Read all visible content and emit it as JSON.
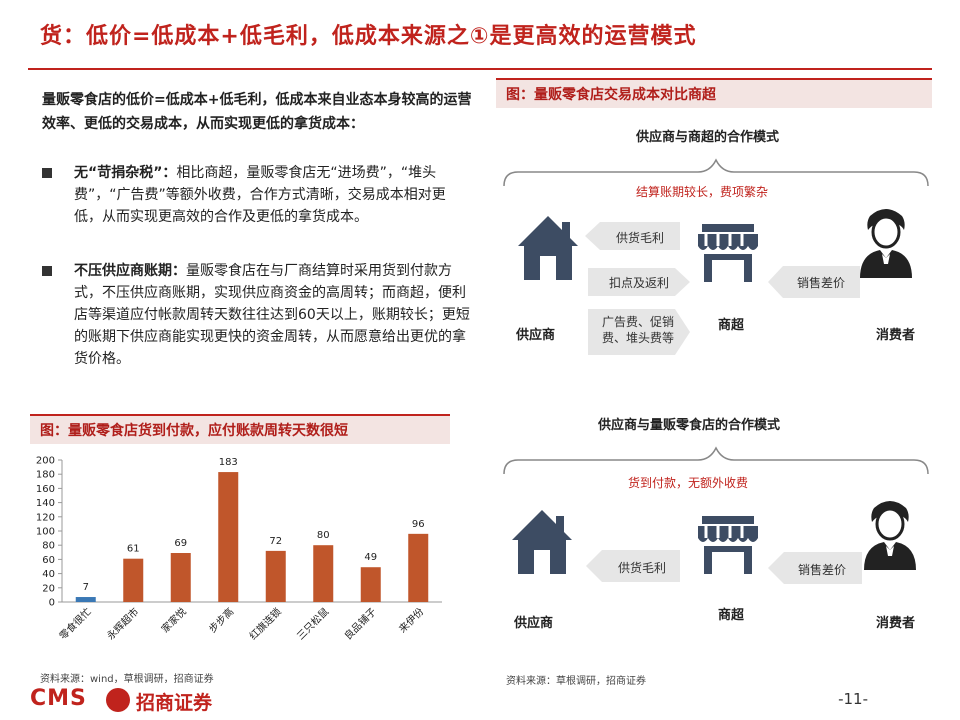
{
  "title": "货：低价=低成本+低毛利，低成本来源之①是更高效的运营模式",
  "intro": "量贩零食店的低价=低成本+低毛利，低成本来自业态本身较高的运营效率、更低的交易成本，从而实现更低的拿货成本：",
  "bullets": [
    {
      "head": "无“苛捐杂税”：",
      "body": "相比商超，量贩零食店无“进场费”，“堆头费”，“广告费”等额外收费，合作方式清晰，交易成本相对更低，从而实现更高效的合作及更低的拿货成本。"
    },
    {
      "head": "不压供应商账期：",
      "body": "量贩零食店在与厂商结算时采用货到付款方式，不压供应商账期，实现供应商资金的高周转；而商超，便利店等渠道应付帐款周转天数往往达到60天以上，账期较长；更短的账期下供应商能实现更快的资金周转，从而愿意给出更优的拿货价格。"
    }
  ],
  "chart_caption": "图：量贩零食店货到付款，应付账款周转天数很短",
  "chart_data": {
    "type": "bar",
    "categories": [
      "零食很忙",
      "永辉超市",
      "家家悦",
      "步步高",
      "红旗连锁",
      "三只松鼠",
      "良品铺子",
      "来伊份"
    ],
    "values": [
      7,
      61,
      69,
      183,
      72,
      80,
      49,
      96
    ],
    "colors": [
      "#3a78b5",
      "#c0562b",
      "#c0562b",
      "#c0562b",
      "#c0562b",
      "#c0562b",
      "#c0562b",
      "#c0562b"
    ],
    "ylim": [
      0,
      200
    ],
    "yticks": [
      0,
      20,
      40,
      60,
      80,
      100,
      120,
      140,
      160,
      180,
      200
    ],
    "title": "",
    "xlabel": "",
    "ylabel": "",
    "grid": false
  },
  "source_left": "资料来源：wind，草根调研，招商证券",
  "right_caption": "图：量贩零食店交易成本对比商超",
  "diagram_top": {
    "head": "供应商与商超的合作模式",
    "note": "结算账期较长，费项繁杂",
    "supplier": "供应商",
    "retailer": "商超",
    "consumer": "消费者",
    "arrows": [
      "供货毛利",
      "扣点及返利",
      "广告费、促销费、堆头费等"
    ],
    "consumer_arrow": "销售差价"
  },
  "diagram_bottom": {
    "head": "供应商与量贩零食店的合作模式",
    "note": "货到付款，无额外收费",
    "supplier": "供应商",
    "retailer": "商超",
    "consumer": "消费者",
    "arrow": "供货毛利",
    "consumer_arrow": "销售差价"
  },
  "source_right": "资料来源：草根调研，招商证券",
  "footer": {
    "logo_text": "CMS",
    "logo_cn": "招商证券",
    "page": "-11-"
  },
  "colors": {
    "accent": "#c0231d",
    "icon": "#3d4c63",
    "arrow": "#e6e6e6"
  }
}
